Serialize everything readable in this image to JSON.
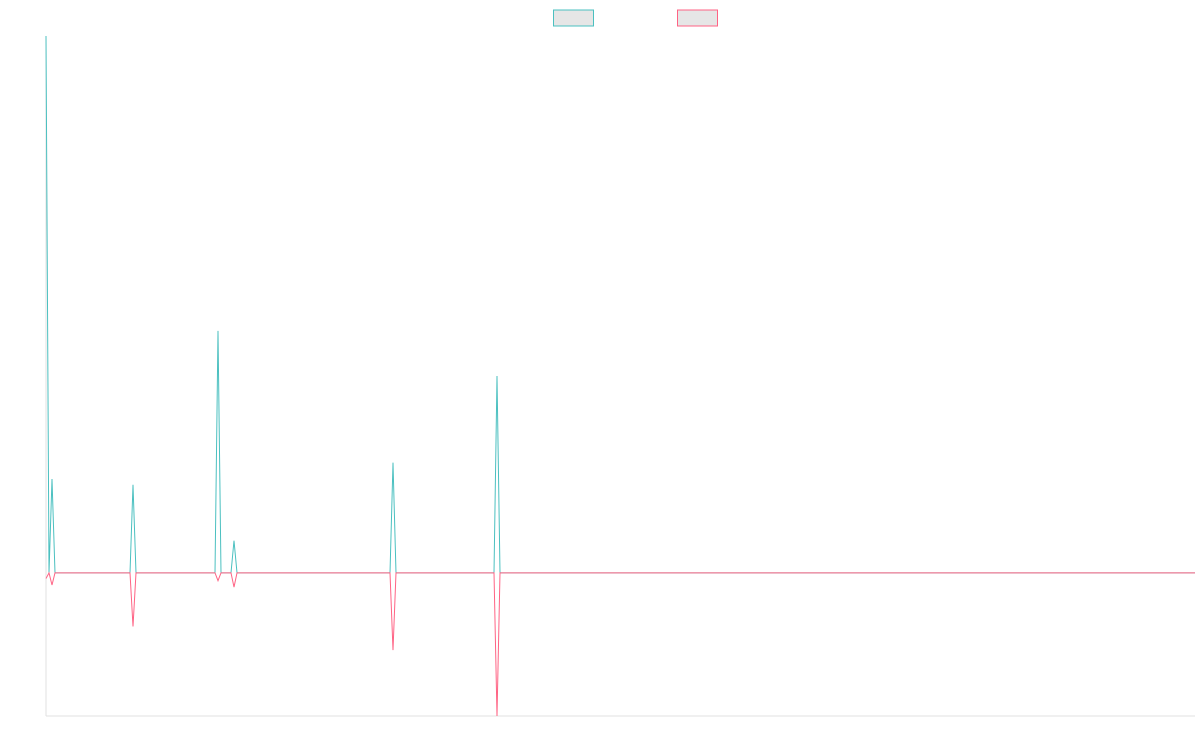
{
  "chart_data": {
    "type": "line",
    "legend": "top",
    "x": [
      0,
      3,
      6,
      9,
      84,
      87,
      90,
      169,
      172,
      175,
      185,
      188,
      191,
      344,
      347,
      350,
      448,
      451,
      454,
      1149
    ],
    "xlim": [
      0,
      1149
    ],
    "ylim": [
      -20,
      75
    ],
    "series": [
      {
        "color": "#4bc0c0",
        "values": [
          75,
          0,
          13.1,
          0,
          0,
          12.3,
          0,
          0,
          33.8,
          0,
          0,
          4.5,
          0,
          0,
          15.4,
          0,
          0,
          27.5,
          0,
          0
        ]
      },
      {
        "color": "#ff6384",
        "values": [
          -0.8,
          0,
          -1.7,
          0,
          0,
          -7.5,
          0,
          0,
          -1.1,
          0,
          0,
          -2,
          0,
          0,
          -10.8,
          0,
          0,
          -20,
          0,
          0
        ]
      }
    ]
  }
}
